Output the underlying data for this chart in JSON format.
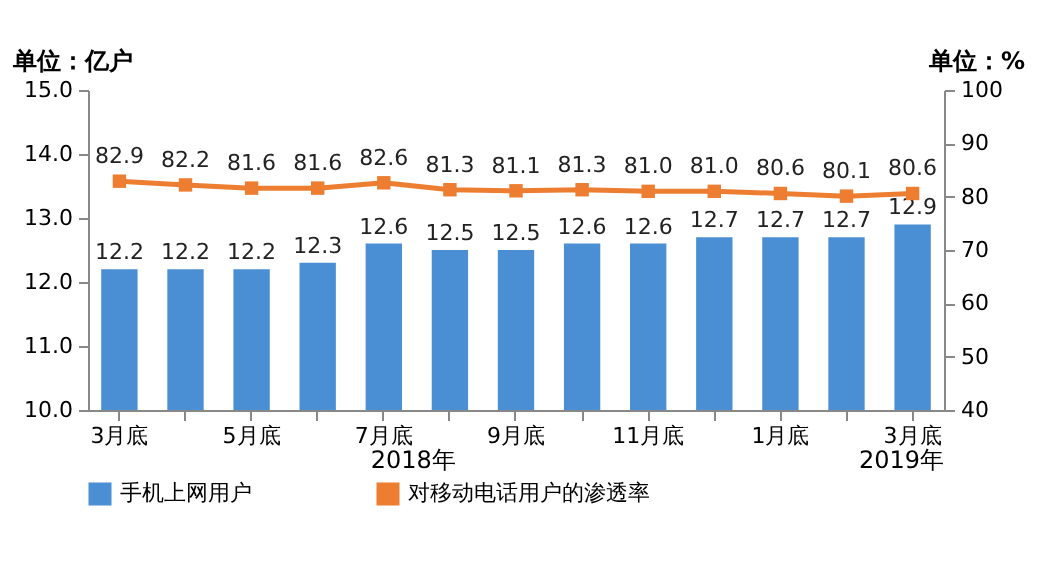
{
  "chart_data": {
    "type": "bar",
    "ylabel": "单位：亿户",
    "y2label": "单位：%",
    "categories": [
      "3月底",
      null,
      "5月底",
      null,
      "7月底",
      null,
      "9月底",
      null,
      "11月底",
      null,
      "1月底",
      null,
      "3月底"
    ],
    "series": [
      {
        "name": "手机上网用户",
        "color": "#4a8fd4",
        "values": [
          12.2,
          12.2,
          12.2,
          12.3,
          12.6,
          12.5,
          12.5,
          12.6,
          12.6,
          12.7,
          12.7,
          12.7,
          12.9
        ],
        "value_labels": [
          "12.2",
          "12.2",
          "12.2",
          "12.3",
          "12.6",
          "12.5",
          "12.5",
          "12.6",
          "12.6",
          "12.7",
          "12.7",
          "12.7",
          "12.9"
        ]
      },
      {
        "name": "对移动电话用户的渗透率",
        "type": "line",
        "axis": "y2",
        "color": "#ed7d31",
        "marker": "square",
        "values": [
          82.9,
          82.2,
          81.6,
          81.6,
          82.6,
          81.3,
          81.1,
          81.3,
          81.0,
          81.0,
          80.6,
          80.1,
          80.6
        ],
        "value_labels": [
          "82.9",
          "82.2",
          "81.6",
          "81.6",
          "82.6",
          "81.3",
          "81.1",
          "81.3",
          "81.0",
          "81.0",
          "80.6",
          "80.1",
          "80.6"
        ]
      }
    ],
    "ylim": [
      10,
      15
    ],
    "yticks": [
      {
        "value": 10,
        "label": "10.0"
      },
      {
        "value": 11,
        "label": "11.0"
      },
      {
        "value": 12,
        "label": "12.0"
      },
      {
        "value": 13,
        "label": "13.0"
      },
      {
        "value": 14,
        "label": "14.0"
      },
      {
        "value": 15,
        "label": "15.0"
      }
    ],
    "y2lim": [
      40,
      100
    ],
    "y2ticks": [
      40,
      50,
      60,
      70,
      80,
      90,
      100
    ],
    "legend": "bottom",
    "annotations": [
      "2018年",
      "2019年"
    ]
  }
}
